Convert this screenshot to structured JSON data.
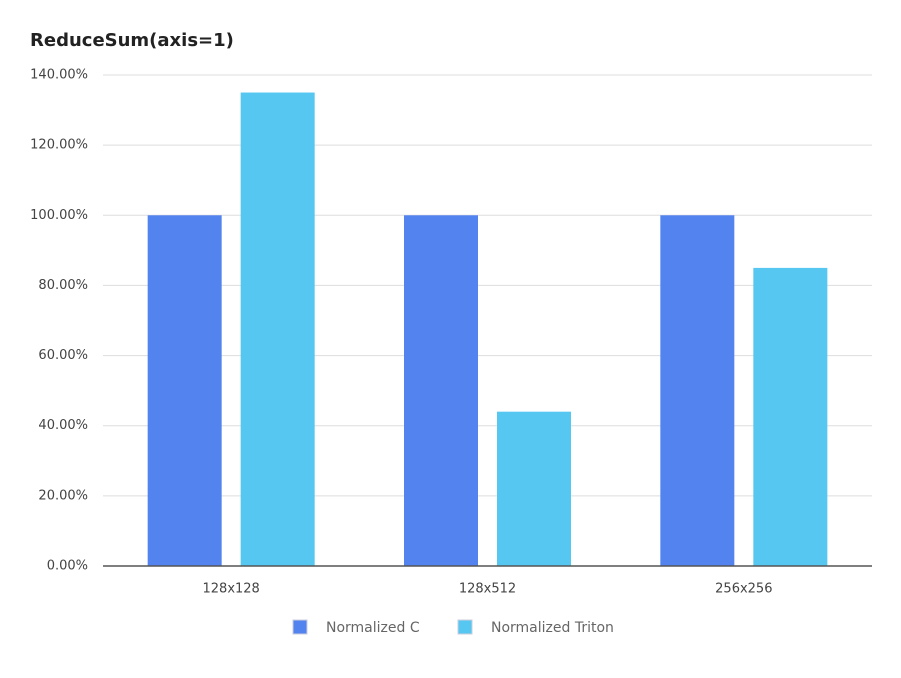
{
  "chart_data": {
    "type": "bar",
    "title": "ReduceSum(axis=1)",
    "categories": [
      "128x128",
      "128x512",
      "256x256"
    ],
    "series": [
      {
        "name": "Normalized C",
        "color": "#5383ef",
        "values": [
          100,
          100,
          100
        ]
      },
      {
        "name": "Normalized Triton",
        "color": "#55c7f0",
        "values": [
          135,
          44,
          85
        ]
      }
    ],
    "ylim": [
      0,
      140
    ],
    "yticks": [
      {
        "value": 0,
        "label": "0.00%"
      },
      {
        "value": 20,
        "label": "20.00%"
      },
      {
        "value": 40,
        "label": "40.00%"
      },
      {
        "value": 60,
        "label": "60.00%"
      },
      {
        "value": 80,
        "label": "80.00%"
      },
      {
        "value": 100,
        "label": "100.00%"
      },
      {
        "value": 120,
        "label": "120.00%"
      },
      {
        "value": 140,
        "label": "140.00%"
      }
    ],
    "grid": true,
    "legend": "bottom"
  }
}
